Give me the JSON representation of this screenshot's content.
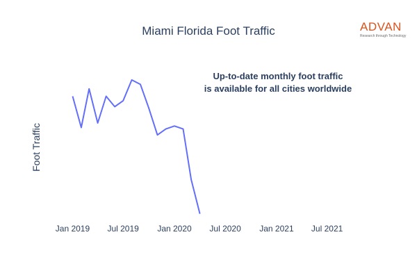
{
  "chart_data": {
    "type": "line",
    "title": "Miami Florida Foot Traffic",
    "xlabel": "",
    "ylabel": "Foot Traffic",
    "annotation": [
      "Up-to-date monthly foot traffic",
      "is available for all cities worldwide"
    ],
    "x_range": [
      "2018-11-01",
      "2021-11-01"
    ],
    "x_ticks": [
      {
        "date": "2019-01-01",
        "label": "Jan 2019"
      },
      {
        "date": "2019-07-01",
        "label": "Jul 2019"
      },
      {
        "date": "2020-01-01",
        "label": "Jan 2020"
      },
      {
        "date": "2020-07-01",
        "label": "Jul 2020"
      },
      {
        "date": "2021-01-01",
        "label": "Jan 2021"
      },
      {
        "date": "2021-07-01",
        "label": "Jul 2021"
      }
    ],
    "y_tick_labels_shown": false,
    "grid": false,
    "series": [
      {
        "color": "#636efa",
        "x": [
          "2019-01-01",
          "2019-02-01",
          "2019-03-01",
          "2019-04-01",
          "2019-05-01",
          "2019-06-01",
          "2019-07-01",
          "2019-08-01",
          "2019-09-01",
          "2019-10-01",
          "2019-11-01",
          "2019-12-01",
          "2020-01-01",
          "2020-02-01",
          "2020-03-01",
          "2020-04-01"
        ],
        "values": [
          0.82,
          0.61,
          0.87,
          0.64,
          0.82,
          0.75,
          0.79,
          0.93,
          0.9,
          0.74,
          0.56,
          0.6,
          0.62,
          0.6,
          0.26,
          0.03
        ]
      }
    ]
  },
  "logo": {
    "word": "ADVAN",
    "tagline": "Research through Technology"
  }
}
